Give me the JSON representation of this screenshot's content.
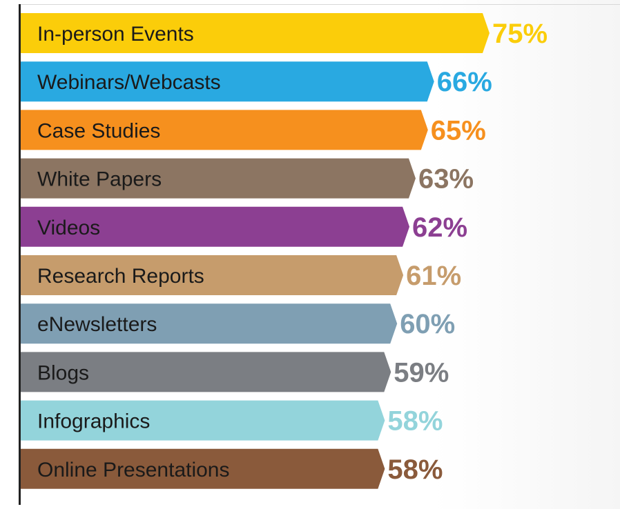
{
  "chart_data": {
    "type": "bar",
    "orientation": "horizontal",
    "categories": [
      "In-person Events",
      "Webinars/Webcasts",
      "Case Studies",
      "White Papers",
      "Videos",
      "Research Reports",
      "eNewsletters",
      "Blogs",
      "Infographics",
      "Online Presentations"
    ],
    "values": [
      75,
      66,
      65,
      63,
      62,
      61,
      60,
      59,
      58,
      58
    ],
    "value_labels": [
      "75%",
      "66%",
      "65%",
      "63%",
      "62%",
      "61%",
      "60%",
      "59%",
      "58%",
      "58%"
    ],
    "colors": [
      "#fbcd0a",
      "#29a9e1",
      "#f6901e",
      "#8c7562",
      "#8c3f92",
      "#c69c6c",
      "#7f9fb3",
      "#7b7e83",
      "#93d4db",
      "#8a5a3b"
    ],
    "xlim": [
      0,
      100
    ],
    "grid": false,
    "legend": "none",
    "title": "",
    "xlabel": "",
    "ylabel": ""
  }
}
